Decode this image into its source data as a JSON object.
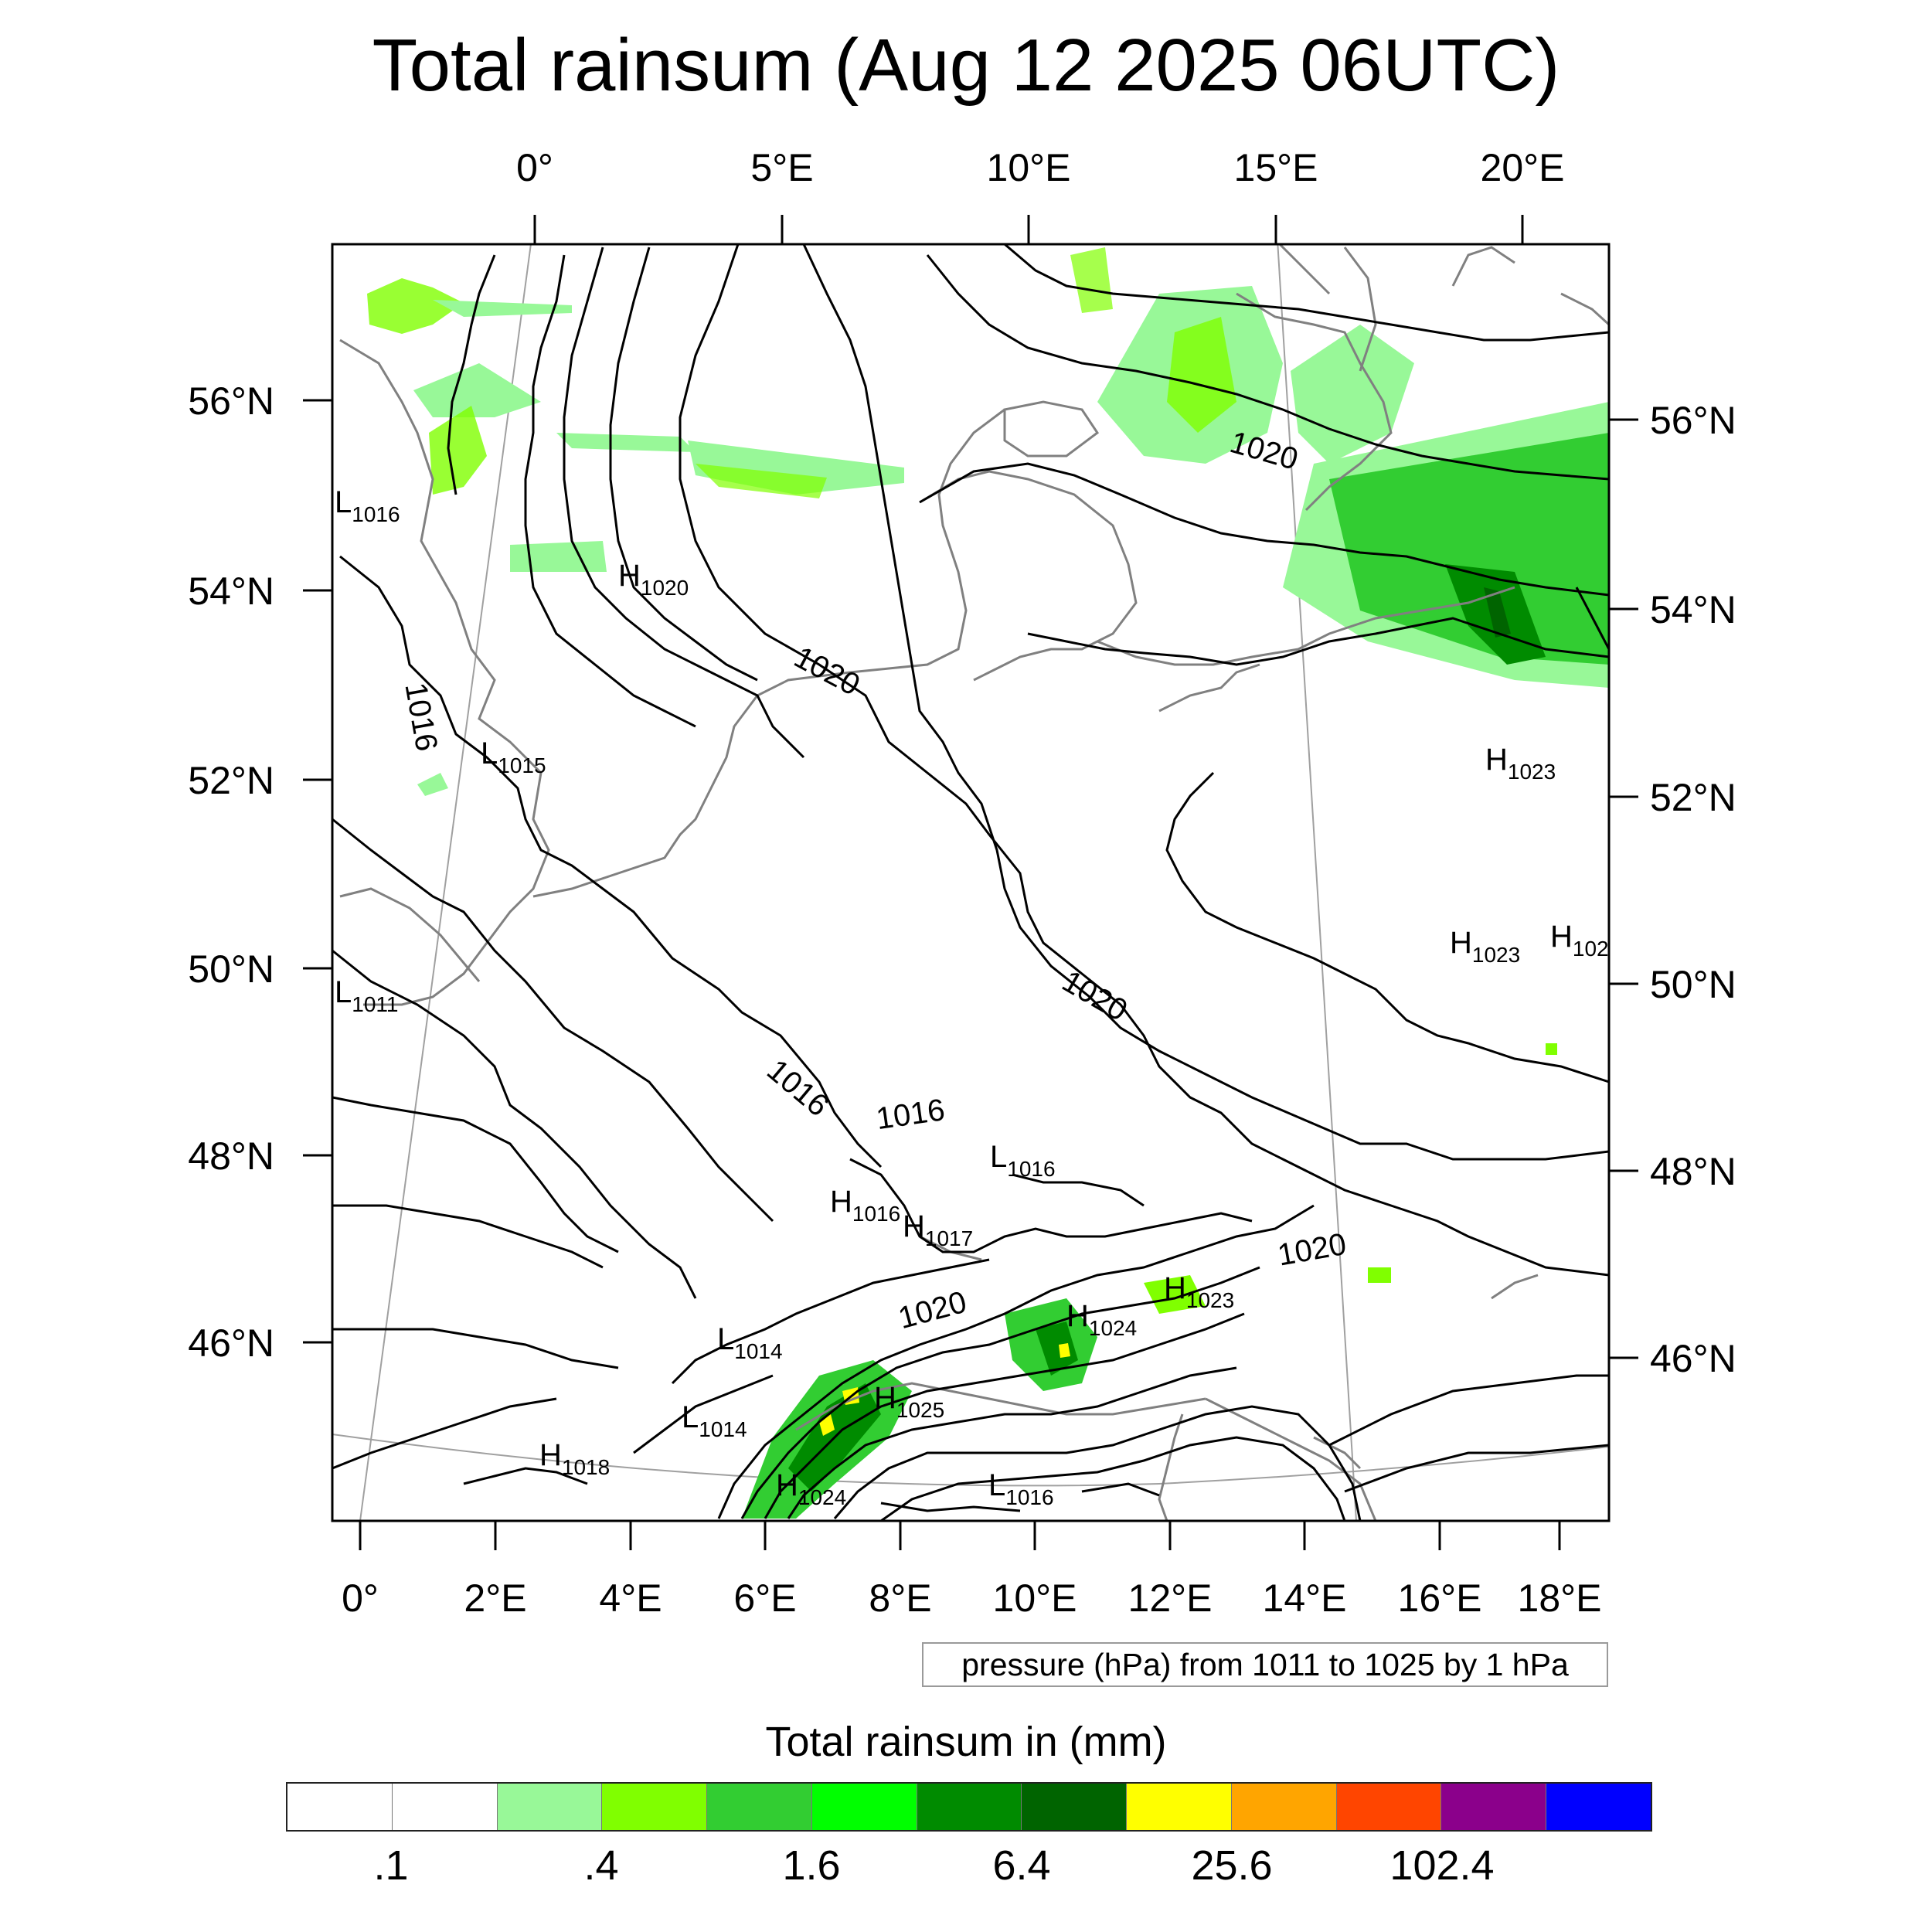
{
  "title": "Total rainsum (Aug 12 2025 06UTC)",
  "map": {
    "projection": "polar-like conic (rotated grid)",
    "top_lon_labels": [
      "0°",
      "5°E",
      "10°E",
      "15°E",
      "20°E"
    ],
    "bottom_lon_labels": [
      "0°",
      "2°E",
      "4°E",
      "6°E",
      "8°E",
      "10°E",
      "12°E",
      "14°E",
      "16°E",
      "18°E"
    ],
    "left_lat_labels": [
      "56°N",
      "54°N",
      "52°N",
      "50°N",
      "48°N",
      "46°N"
    ],
    "right_lat_labels": [
      "56°N",
      "54°N",
      "52°N",
      "50°N",
      "48°N",
      "46°N"
    ],
    "pressure_centers": [
      {
        "type": "L",
        "value": "1016"
      },
      {
        "type": "H",
        "value": "1020"
      },
      {
        "type": "L",
        "value": "1015"
      },
      {
        "type": "L",
        "value": "1011"
      },
      {
        "type": "H",
        "value": "1023"
      },
      {
        "type": "H",
        "value": "1023"
      },
      {
        "type": "H",
        "value": "102"
      },
      {
        "type": "L",
        "value": "1016"
      },
      {
        "type": "H",
        "value": "1016"
      },
      {
        "type": "H",
        "value": "1017"
      },
      {
        "type": "H",
        "value": "1023"
      },
      {
        "type": "H",
        "value": "1024"
      },
      {
        "type": "L",
        "value": "1014"
      },
      {
        "type": "H",
        "value": "1025"
      },
      {
        "type": "L",
        "value": "1014"
      },
      {
        "type": "H",
        "value": "1018"
      },
      {
        "type": "H",
        "value": "1024"
      },
      {
        "type": "L",
        "value": "1016"
      }
    ],
    "isobar_labels": [
      "1020",
      "1020",
      "1016",
      "1020",
      "1016",
      "1016",
      "1020",
      "1020"
    ],
    "colors": {
      "isobar": "#000000",
      "coast": "#808080",
      "grid": "#a0a0a0"
    }
  },
  "info_text": "pressure (hPa) from 1011 to 1025 by 1 hPa",
  "legend": {
    "title": "Total rainsum in (mm)",
    "colors": [
      "#ffffff",
      "#ffffff",
      "#98f898",
      "#80ff00",
      "#32cd32",
      "#00ff00",
      "#008b00",
      "#006400",
      "#ffff00",
      "#ffa500",
      "#ff4500",
      "#8b008b",
      "#0000ff"
    ],
    "labels": [
      ".1",
      ".4",
      "1.6",
      "6.4",
      "25.6",
      "102.4"
    ],
    "thresholds": [
      0.1,
      0.2,
      0.4,
      0.8,
      1.6,
      3.2,
      6.4,
      12.8,
      25.6,
      51.2,
      102.4,
      204.8
    ]
  }
}
